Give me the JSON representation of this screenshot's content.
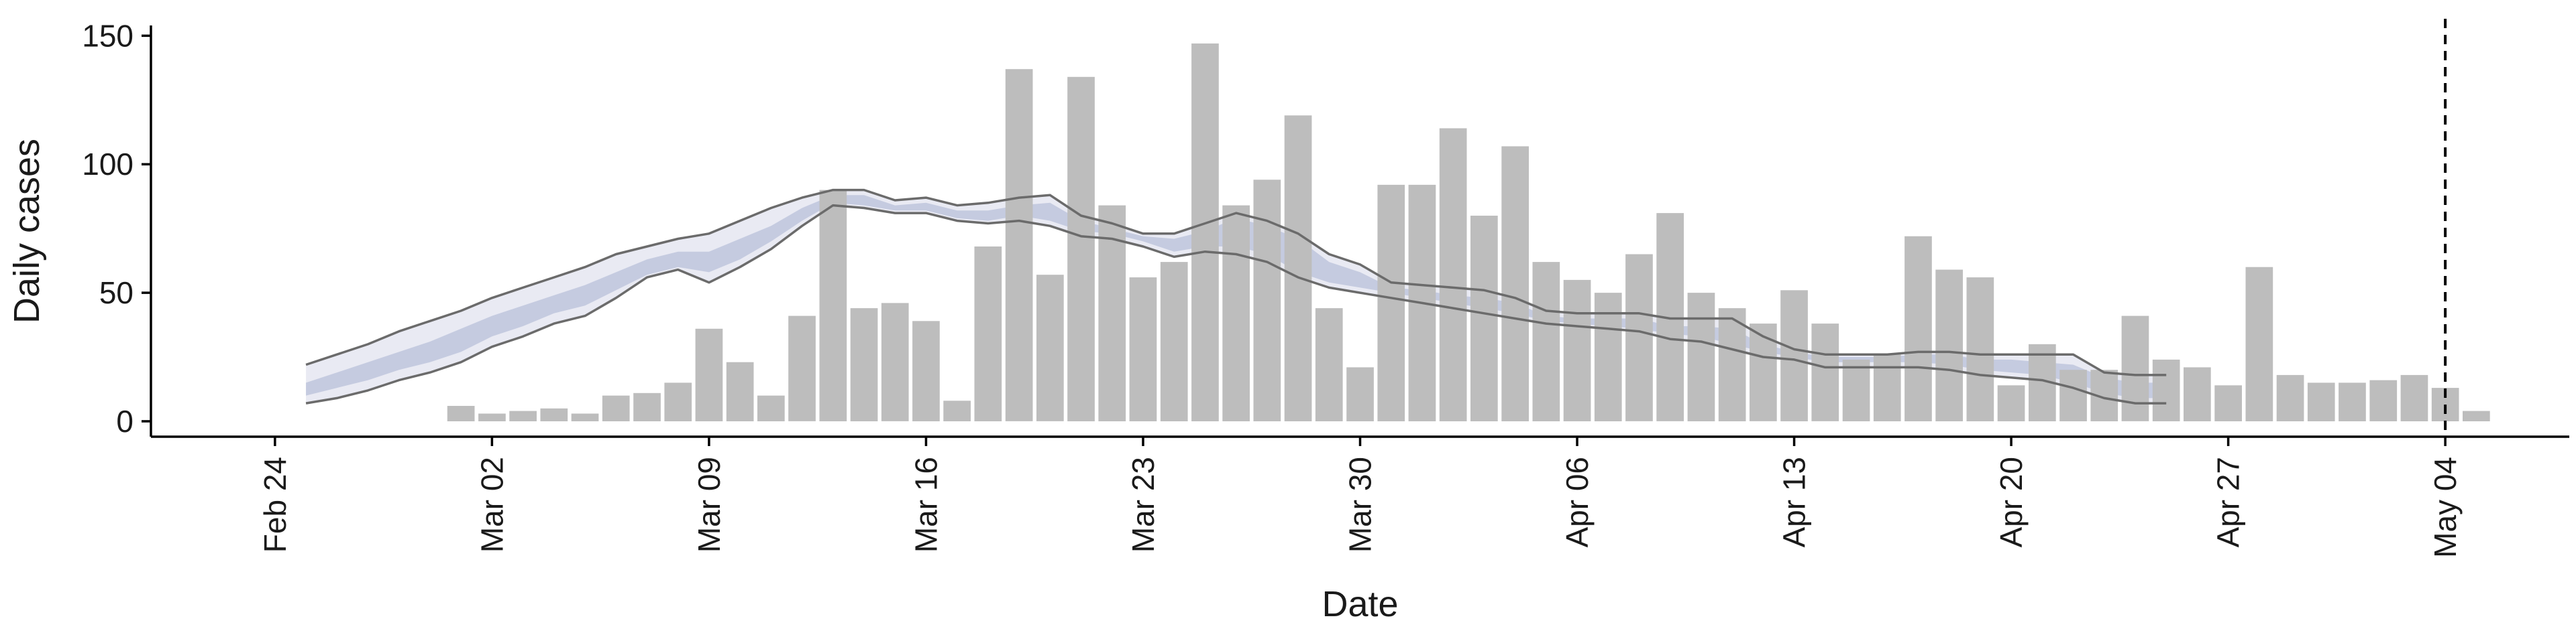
{
  "chart_data": {
    "type": "bar",
    "title": "",
    "xlabel": "Date",
    "ylabel": "Daily cases",
    "ylim": [
      -6,
      154
    ],
    "grid": false,
    "legend": "none",
    "x_range": [
      "2020-02-20",
      "2020-05-08"
    ],
    "yticks": [
      0,
      50,
      100,
      150
    ],
    "xticks": [
      {
        "date": "2020-02-24",
        "label": "Feb 24"
      },
      {
        "date": "2020-03-02",
        "label": "Mar 02"
      },
      {
        "date": "2020-03-09",
        "label": "Mar 09"
      },
      {
        "date": "2020-03-16",
        "label": "Mar 16"
      },
      {
        "date": "2020-03-23",
        "label": "Mar 23"
      },
      {
        "date": "2020-03-30",
        "label": "Mar 30"
      },
      {
        "date": "2020-04-06",
        "label": "Apr 06"
      },
      {
        "date": "2020-04-13",
        "label": "Apr 13"
      },
      {
        "date": "2020-04-20",
        "label": "Apr 20"
      },
      {
        "date": "2020-04-27",
        "label": "Apr 27"
      },
      {
        "date": "2020-05-04",
        "label": "May 04"
      }
    ],
    "vline_date": "2020-05-04",
    "colors": {
      "bars": "#bdbdbd",
      "outer_band": "#e9eaf3",
      "inner_band": "#c5cbe0",
      "bound_lines": "#6b6b6b",
      "axis": "#000000"
    },
    "bars": {
      "start": "2020-03-01",
      "values": [
        6,
        3,
        4,
        5,
        3,
        10,
        11,
        15,
        36,
        23,
        10,
        41,
        90,
        44,
        46,
        39,
        8,
        68,
        137,
        57,
        134,
        84,
        56,
        62,
        147,
        84,
        94,
        119,
        44,
        21,
        92,
        92,
        114,
        80,
        107,
        62,
        55,
        50,
        65,
        81,
        50,
        44,
        38,
        51,
        38,
        24,
        26,
        72,
        59,
        56,
        14,
        30,
        20,
        20,
        41,
        24,
        21,
        14,
        60,
        18,
        15,
        15,
        16,
        18,
        13,
        4
      ]
    },
    "band": {
      "start": "2020-02-25",
      "upper": [
        22,
        26,
        30,
        35,
        39,
        43,
        48,
        52,
        56,
        60,
        65,
        68,
        71,
        73,
        78,
        83,
        87,
        90,
        90,
        86,
        87,
        84,
        85,
        87,
        88,
        80,
        77,
        73,
        73,
        77,
        81,
        78,
        73,
        65,
        61,
        54,
        53,
        52,
        51,
        48,
        43,
        42,
        42,
        42,
        40,
        40,
        40,
        33,
        28,
        26,
        26,
        26,
        27,
        27,
        26,
        26,
        26,
        26,
        19,
        18,
        18
      ],
      "lower": [
        7,
        9,
        12,
        16,
        19,
        23,
        29,
        33,
        38,
        41,
        48,
        56,
        59,
        54,
        60,
        67,
        76,
        84,
        83,
        81,
        81,
        78,
        77,
        78,
        76,
        72,
        71,
        68,
        64,
        66,
        65,
        62,
        56,
        52,
        50,
        48,
        46,
        44,
        42,
        40,
        38,
        37,
        36,
        35,
        32,
        31,
        28,
        25,
        24,
        21,
        21,
        21,
        21,
        20,
        18,
        17,
        16,
        13,
        9,
        7,
        7
      ],
      "inner_upper": [
        15,
        19,
        23,
        27,
        31,
        36,
        41,
        45,
        49,
        53,
        58,
        63,
        66,
        66,
        71,
        76,
        83,
        88,
        88,
        84,
        85,
        82,
        82,
        84,
        85,
        78,
        75,
        72,
        71,
        74,
        79,
        76,
        71,
        62,
        58,
        52,
        51,
        49,
        48,
        46,
        41,
        40,
        40,
        40,
        37,
        37,
        36,
        30,
        27,
        25,
        25,
        25,
        26,
        26,
        24,
        24,
        23,
        22,
        17,
        15,
        15
      ],
      "inner_lower": [
        10,
        13,
        16,
        20,
        23,
        27,
        33,
        37,
        42,
        45,
        51,
        57,
        60,
        58,
        63,
        70,
        78,
        85,
        84,
        82,
        82,
        79,
        78,
        80,
        78,
        74,
        73,
        70,
        66,
        68,
        68,
        65,
        58,
        54,
        52,
        50,
        48,
        46,
        44,
        42,
        39,
        38,
        37,
        36,
        34,
        33,
        30,
        27,
        25,
        23,
        23,
        23,
        23,
        22,
        20,
        19,
        18,
        15,
        11,
        9,
        9
      ]
    }
  }
}
